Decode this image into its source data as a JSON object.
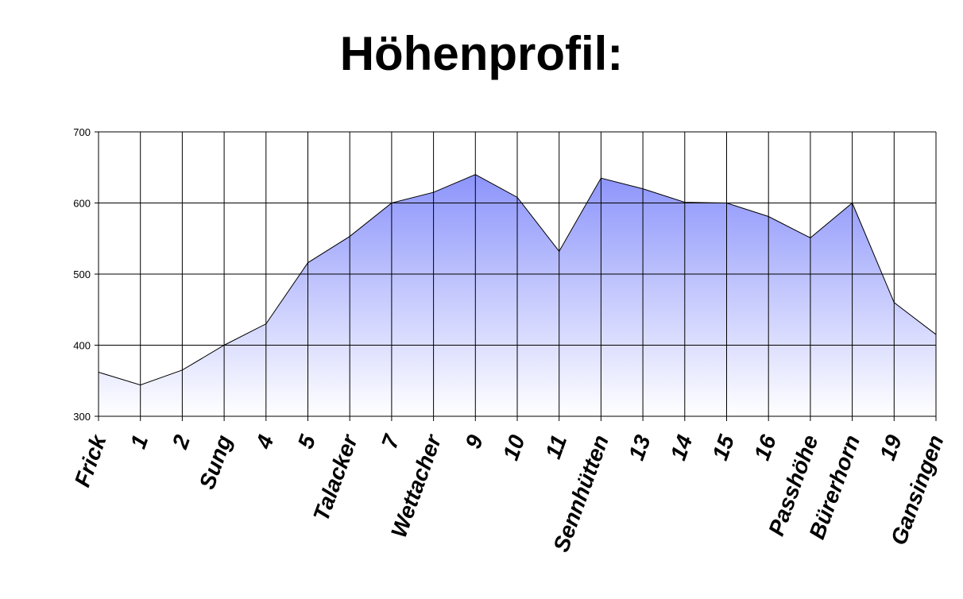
{
  "chart_data": {
    "type": "area",
    "title": "Höhenprofil:",
    "xlabel": "",
    "ylabel": "",
    "categories": [
      "Frick",
      "1",
      "2",
      "Sung",
      "4",
      "5",
      "Talacker",
      "7",
      "Wettacher",
      "9",
      "10",
      "11",
      "Sennhütten",
      "13",
      "14",
      "15",
      "16",
      "Passhöhe",
      "Bürerhorn",
      "19",
      "Gansingen"
    ],
    "values": [
      362,
      344,
      365,
      400,
      430,
      516,
      553,
      600,
      615,
      640,
      608,
      532,
      635,
      620,
      601,
      600,
      581,
      551,
      600,
      460,
      415
    ],
    "ylim": [
      300,
      700
    ],
    "yticks": [
      "300",
      "400",
      "500",
      "600",
      "700"
    ],
    "grid": true,
    "colors": {
      "fill_top": "#8c94fb",
      "fill_bottom": "#ffffff",
      "line": "#000000"
    }
  }
}
